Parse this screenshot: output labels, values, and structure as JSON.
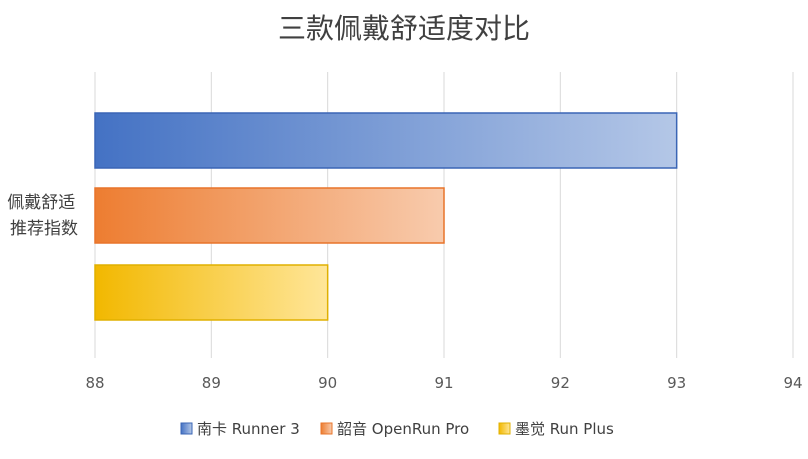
{
  "chart_data": {
    "type": "bar",
    "orientation": "horizontal",
    "title": "三款佩戴舒适度对比",
    "categories": [
      "佩戴舒适推荐指数"
    ],
    "category_lines": [
      "佩戴舒适",
      "推荐指数"
    ],
    "series": [
      {
        "name": "南卡 Runner 3",
        "values": [
          93
        ],
        "color": "#4472c4"
      },
      {
        "name": "韶音 OpenRun Pro",
        "values": [
          91
        ],
        "color": "#ed7d31"
      },
      {
        "name": "墨觉 Run Plus",
        "values": [
          90
        ],
        "color": "#ffc000"
      }
    ],
    "xlim": [
      88,
      94
    ],
    "xticks": [
      "88",
      "89",
      "90",
      "91",
      "92",
      "93",
      "94"
    ],
    "grid": true,
    "legend_position": "bottom"
  }
}
